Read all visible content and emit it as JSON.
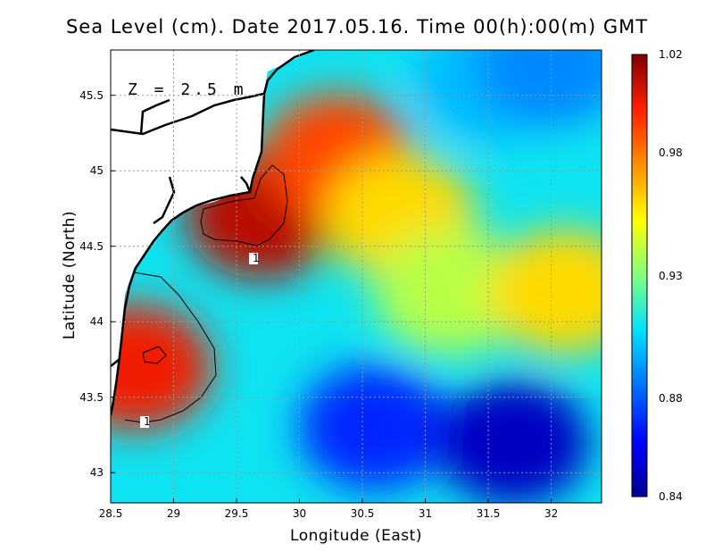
{
  "chart_data": {
    "type": "heatmap",
    "title": "Sea Level (cm). Date 2017.05.16. Time 00(h):00(m) GMT",
    "xlabel": "Longitude (East)",
    "ylabel": "Latitude (North)",
    "xlim": [
      28.5,
      32.4
    ],
    "ylim": [
      42.8,
      45.8
    ],
    "x_ticks": [
      "28.5",
      "29",
      "29.5",
      "30",
      "30.5",
      "31",
      "31.5",
      "32"
    ],
    "y_ticks": [
      "43",
      "43.5",
      "44",
      "44.5",
      "45",
      "45.5"
    ],
    "depth_annotation": "Z = 2.5 m",
    "contour_labels": [
      "1",
      "1"
    ],
    "grid": true,
    "colorbar": {
      "min": 0.84,
      "max": 1.02,
      "ticks": [
        "1.02",
        "0.98",
        "0.93",
        "0.88",
        "0.84"
      ],
      "colors": [
        "#00008f",
        "#0000ff",
        "#0070ff",
        "#00e0ff",
        "#80ff80",
        "#ffff00",
        "#ff9000",
        "#ff2000",
        "#800000"
      ]
    },
    "field_samples": [
      {
        "lon": 28.7,
        "lat": 43.7,
        "value": 1.0
      },
      {
        "lon": 29.7,
        "lat": 44.7,
        "value": 1.01
      },
      {
        "lon": 30.3,
        "lat": 45.1,
        "value": 0.99
      },
      {
        "lon": 30.8,
        "lat": 44.7,
        "value": 0.96
      },
      {
        "lon": 31.2,
        "lat": 44.2,
        "value": 0.94
      },
      {
        "lon": 32.1,
        "lat": 44.2,
        "value": 0.96
      },
      {
        "lon": 30.6,
        "lat": 43.3,
        "value": 0.87
      },
      {
        "lon": 31.7,
        "lat": 43.2,
        "value": 0.85
      },
      {
        "lon": 31.5,
        "lat": 45.6,
        "value": 0.9
      },
      {
        "lon": 32.0,
        "lat": 45.7,
        "value": 0.89
      }
    ]
  }
}
